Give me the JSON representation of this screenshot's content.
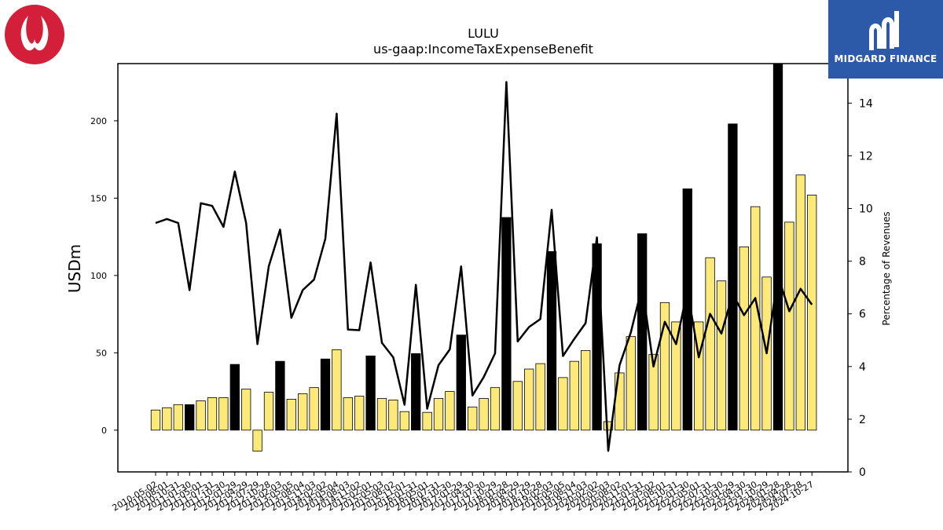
{
  "logos": {
    "brand": "lululemon",
    "company": "MIDGARD FINANCE"
  },
  "chart_data": {
    "type": "bar",
    "title": "LULU",
    "subtitle": "us-gaap:IncomeTaxExpenseBenefit",
    "ylabel": "USDm",
    "y2label": "Percentage of Revenues",
    "ylim": [
      -27,
      237
    ],
    "y2lim": [
      0,
      15.5
    ],
    "yticks": [
      0,
      50,
      100,
      150,
      200
    ],
    "y2ticks": [
      0,
      2,
      4,
      6,
      8,
      10,
      12,
      14
    ],
    "grid": false,
    "legend": "none",
    "colors": {
      "quarter": "#fde97a",
      "annual": "#000000",
      "line": "#000000"
    },
    "categories": [
      "2010-05-02",
      "2010-08-01",
      "2010-10-31",
      "2011-01-30",
      "2011-05-01",
      "2011-07-31",
      "2011-10-30",
      "2012-01-29",
      "2012-04-29",
      "2012-07-29",
      "2012-10-28",
      "2013-02-03",
      "2013-05-05",
      "2013-08-04",
      "2013-11-03",
      "2014-02-02",
      "2014-05-04",
      "2014-08-03",
      "2014-11-02",
      "2015-02-01",
      "2015-05-03",
      "2015-08-02",
      "2015-11-01",
      "2016-01-31",
      "2016-05-01",
      "2016-07-31",
      "2016-10-30",
      "2017-01-29",
      "2017-04-30",
      "2017-07-30",
      "2017-10-29",
      "2018-01-28",
      "2018-04-29",
      "2018-07-29",
      "2018-10-28",
      "2019-02-03",
      "2019-05-05",
      "2019-08-04",
      "2019-11-03",
      "2020-02-02",
      "2020-05-03",
      "2020-08-02",
      "2020-11-01",
      "2021-01-31",
      "2021-05-02",
      "2021-08-01",
      "2021-10-31",
      "2022-01-30",
      "2022-05-01",
      "2022-07-31",
      "2022-10-30",
      "2023-01-29",
      "2023-04-30",
      "2023-07-30",
      "2023-10-29",
      "2024-01-28",
      "2024-04-28",
      "2024-07-28",
      "2024-10-27"
    ],
    "series": [
      {
        "values": [
          13,
          14.5,
          16.5,
          16.5,
          19,
          21,
          21,
          42.5,
          26.5,
          -13.5,
          24.5,
          44.5,
          20,
          23.5,
          27.5,
          46,
          52,
          21,
          22,
          48,
          20.5,
          19.5,
          12,
          49.5,
          11.5,
          20.5,
          25,
          61.5,
          15,
          20.5,
          27.5,
          137.5,
          31.5,
          39.5,
          43,
          115.5,
          34,
          44.5,
          51.5,
          120.5,
          5.5,
          37,
          60.5,
          127,
          49,
          82.5,
          70,
          156,
          70,
          111.5,
          96.5,
          198,
          118.5,
          144.5,
          99,
          240,
          134.5,
          165,
          152
        ],
        "annual": [
          false,
          false,
          false,
          true,
          false,
          false,
          false,
          true,
          false,
          false,
          false,
          true,
          false,
          false,
          false,
          true,
          false,
          false,
          false,
          true,
          false,
          false,
          false,
          true,
          false,
          false,
          false,
          true,
          false,
          false,
          false,
          true,
          false,
          false,
          false,
          true,
          false,
          false,
          false,
          true,
          false,
          false,
          false,
          true,
          false,
          false,
          false,
          true,
          false,
          false,
          false,
          true,
          false,
          false,
          false,
          true,
          false,
          false,
          false
        ]
      },
      {
        "axis": "right",
        "type": "line",
        "values": [
          9.45,
          9.6,
          9.45,
          6.9,
          10.2,
          10.1,
          9.3,
          11.4,
          9.45,
          4.85,
          7.8,
          9.2,
          5.85,
          6.9,
          7.3,
          8.85,
          13.6,
          5.4,
          5.38,
          7.95,
          4.9,
          4.35,
          2.55,
          7.1,
          2.4,
          4.05,
          4.65,
          7.8,
          2.9,
          3.6,
          4.5,
          14.8,
          4.95,
          5.5,
          5.8,
          9.95,
          4.4,
          5.05,
          5.65,
          8.9,
          0.8,
          4.05,
          5.3,
          7.05,
          4.0,
          5.7,
          4.85,
          6.9,
          4.35,
          6.0,
          5.25,
          6.75,
          5.95,
          6.6,
          4.5,
          7.45,
          6.1,
          6.95,
          6.35
        ]
      }
    ]
  }
}
